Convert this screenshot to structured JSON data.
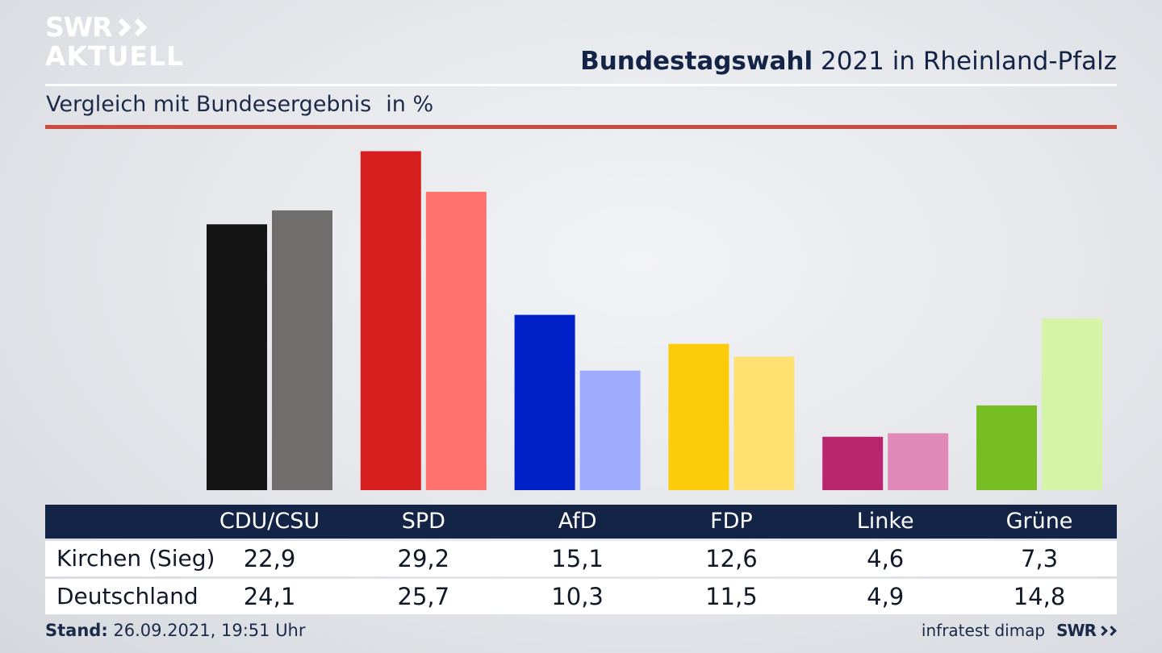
{
  "brand": {
    "line1": "SWR",
    "line2": "AKTUELL"
  },
  "header": {
    "title_bold": "Bundestagswahl",
    "title_rest": "2021 in Rheinland-Pfalz"
  },
  "subtitle": {
    "text": "Vergleich mit Bundesergebnis",
    "unit": "in %"
  },
  "footer": {
    "stand_label": "Stand:",
    "stand_value": "26.09.2021, 19:51 Uhr",
    "source": "infratest dimap",
    "source_brand": "SWR"
  },
  "chart_data": {
    "type": "bar",
    "title": "Bundestagswahl 2021 in Rheinland-Pfalz",
    "subtitle": "Vergleich mit Bundesergebnis",
    "unit": "in %",
    "categories": [
      "CDU/CSU",
      "SPD",
      "AfD",
      "FDP",
      "Linke",
      "Grüne"
    ],
    "series": [
      {
        "name": "Kirchen (Sieg)",
        "values": [
          22.9,
          29.2,
          15.1,
          12.6,
          4.6,
          7.3
        ],
        "labels": [
          "22,9",
          "29,2",
          "15,1",
          "12,6",
          "4,6",
          "7,3"
        ],
        "colors": [
          "#141414",
          "#d71f1f",
          "#0020c8",
          "#fccb0a",
          "#b9266f",
          "#75bd23"
        ]
      },
      {
        "name": "Deutschland",
        "values": [
          24.1,
          25.7,
          10.3,
          11.5,
          4.9,
          14.8
        ],
        "labels": [
          "24,1",
          "25,7",
          "10,3",
          "11,5",
          "4,9",
          "14,8"
        ],
        "colors": [
          "#706e6c",
          "#ff726d",
          "#9eacff",
          "#ffe070",
          "#e088b8",
          "#d4f5a8"
        ]
      }
    ]
  }
}
